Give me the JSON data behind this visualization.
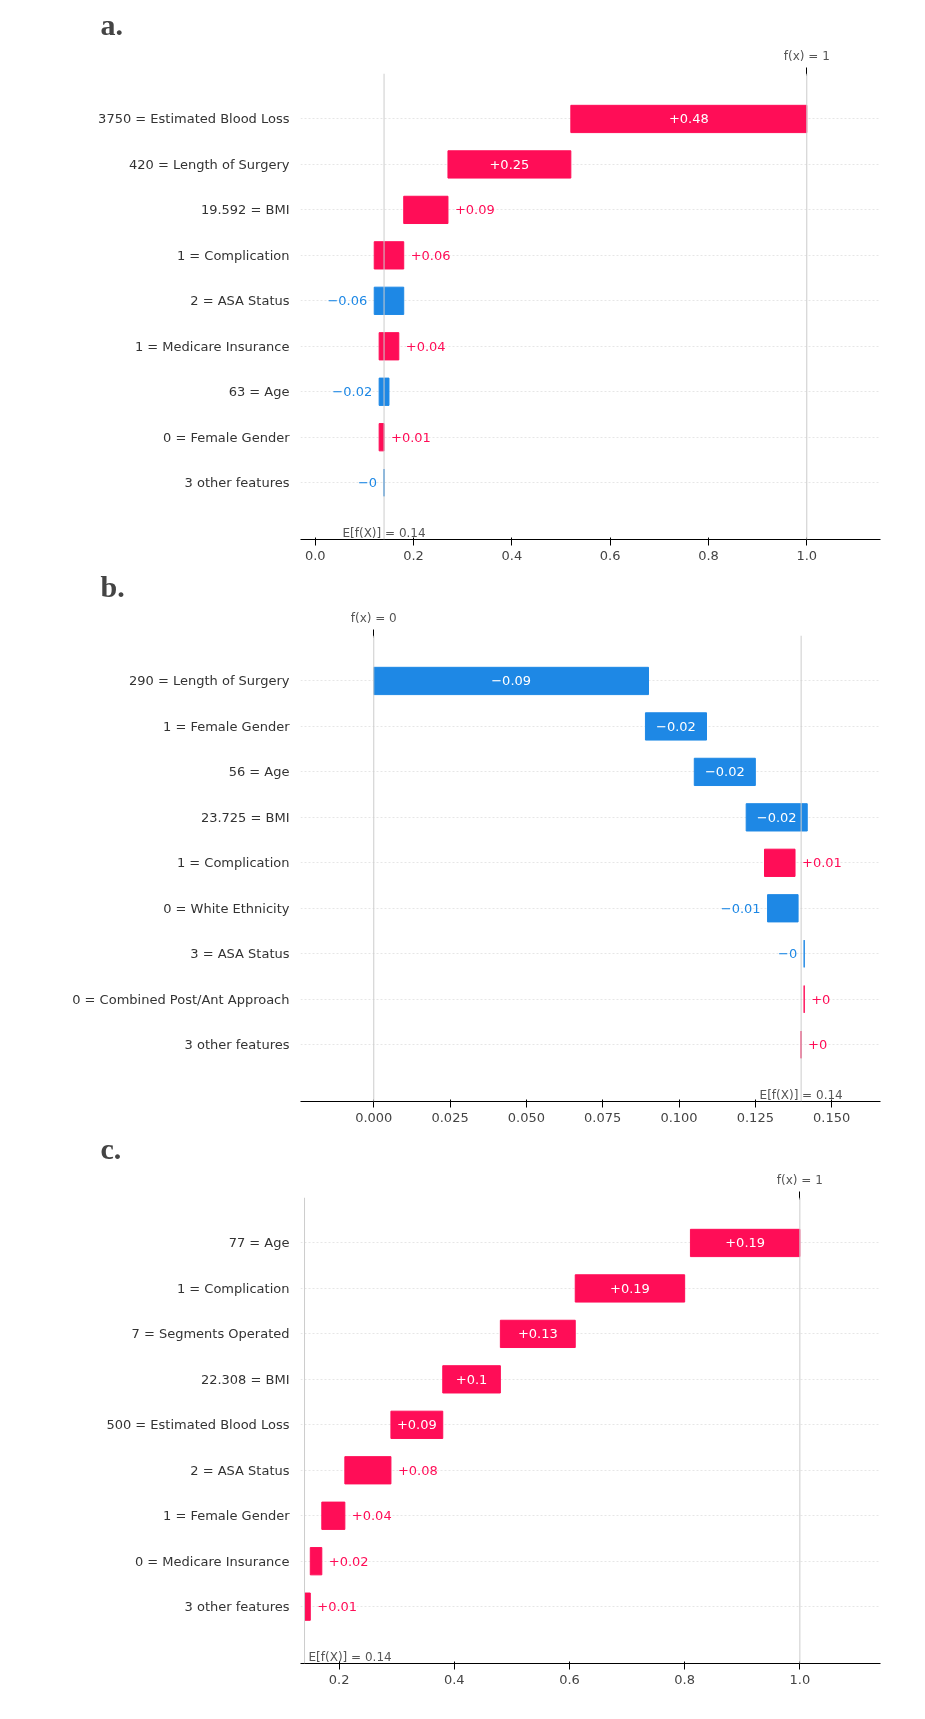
{
  "chart_data": [
    {
      "type": "bar",
      "orientation": "horizontal",
      "title": "a.",
      "grid": "y",
      "categories": [
        "3750 = Estimated Blood Loss",
        "420 = Length of Surgery",
        "19.592 = BMI",
        "1 = Complication",
        "2 = ASA Status",
        "1 = Medicare Insurance",
        "63 = Age",
        "0 = Female Gender",
        "3 other features"
      ],
      "base": [
        0.52,
        0.27,
        0.18,
        0.12,
        0.18,
        0.13,
        0.15,
        0.13,
        0.14
      ],
      "values": [
        0.48,
        0.25,
        0.09,
        0.06,
        -0.06,
        0.04,
        -0.02,
        0.01,
        -0.0
      ],
      "value_labels": [
        "+0.48",
        "+0.25",
        "+0.09",
        "+0.06",
        "−0.06",
        "+0.04",
        "−0.02",
        "+0.01",
        "−0"
      ],
      "colors": [
        "#ff0d57",
        "#ff0d57",
        "#ff0d57",
        "#ff0d57",
        "#1e88e5",
        "#ff0d57",
        "#1e88e5",
        "#ff0d57",
        "#1e88e5"
      ],
      "xlim": [
        -0.03,
        1.15
      ],
      "xticks": [
        {
          "value": 0,
          "label": "0.0"
        },
        0.2,
        0.4,
        0.6,
        0.8,
        {
          "value": 1,
          "label": "1.0"
        }
      ],
      "ref_lines": [
        {
          "axis": "x",
          "value": 1,
          "label": "f(x) = 1"
        },
        {
          "axis": "x",
          "value": 0.14,
          "label": "E[f(X)] = 0.14"
        }
      ]
    },
    {
      "type": "bar",
      "orientation": "horizontal",
      "title": "b.",
      "grid": "y",
      "categories": [
        "290 = Length of Surgery",
        "1 = Female Gender",
        "56 = Age",
        "23.725 = BMI",
        "1 = Complication",
        "0 = White Ethnicity",
        "3 = ASA Status",
        "0 = Combined Post/Ant Approach",
        "3 other features"
      ],
      "base": [
        0.09,
        0.109,
        0.125,
        0.142,
        0.128,
        0.139,
        0.141,
        0.141,
        0.14
      ],
      "values": [
        -0.09,
        -0.02,
        -0.02,
        -0.02,
        0.01,
        -0.01,
        -0.0,
        0.0,
        0.0
      ],
      "value_labels": [
        "−0.09",
        "−0.02",
        "−0.02",
        "−0.02",
        "+0.01",
        "−0.01",
        "−0",
        "+0",
        "+0"
      ],
      "colors": [
        "#1e88e5",
        "#1e88e5",
        "#1e88e5",
        "#1e88e5",
        "#ff0d57",
        "#1e88e5",
        "#1e88e5",
        "#ff0d57",
        "#ff0d57"
      ],
      "xlim": [
        -0.024,
        0.166
      ],
      "xticks": [
        {
          "value": 0,
          "label": "0.000"
        },
        0.025,
        {
          "value": 0.05,
          "label": "0.050"
        },
        0.075,
        {
          "value": 0.1,
          "label": "0.100"
        },
        0.125,
        {
          "value": 0.15,
          "label": "0.150"
        }
      ],
      "ref_lines": [
        {
          "axis": "x",
          "value": 0,
          "label": "f(x) = 0"
        },
        {
          "axis": "x",
          "value": 0.14,
          "label": "E[f(X)] = 0.14"
        }
      ]
    },
    {
      "type": "bar",
      "orientation": "horizontal",
      "title": "c.",
      "grid": "y",
      "categories": [
        "77 = Age",
        "1 = Complication",
        "7 = Segments Operated",
        "22.308 = BMI",
        "500 = Estimated Blood Loss",
        "2 = ASA Status",
        "1 = Female Gender",
        "0 = Medicare Insurance",
        "3 other features"
      ],
      "base": [
        0.81,
        0.61,
        0.48,
        0.38,
        0.29,
        0.21,
        0.17,
        0.15,
        0.14
      ],
      "values": [
        0.19,
        0.19,
        0.13,
        0.1,
        0.09,
        0.08,
        0.04,
        0.02,
        0.01
      ],
      "value_labels": [
        "+0.19",
        "+0.19",
        "+0.13",
        "+0.1",
        "+0.09",
        "+0.08",
        "+0.04",
        "+0.02",
        "+0.01"
      ],
      "colors": [
        "#ff0d57",
        "#ff0d57",
        "#ff0d57",
        "#ff0d57",
        "#ff0d57",
        "#ff0d57",
        "#ff0d57",
        "#ff0d57",
        "#ff0d57"
      ],
      "xlim": [
        0.133,
        1.14
      ],
      "xticks": [
        0.2,
        0.4,
        0.6,
        0.8,
        {
          "value": 1,
          "label": "1.0"
        }
      ],
      "ref_lines": [
        {
          "axis": "x",
          "value": 1,
          "label": "f(x) = 1"
        },
        {
          "axis": "x",
          "value": 0.14,
          "label": "E[f(X)] = 0.14"
        }
      ]
    }
  ]
}
